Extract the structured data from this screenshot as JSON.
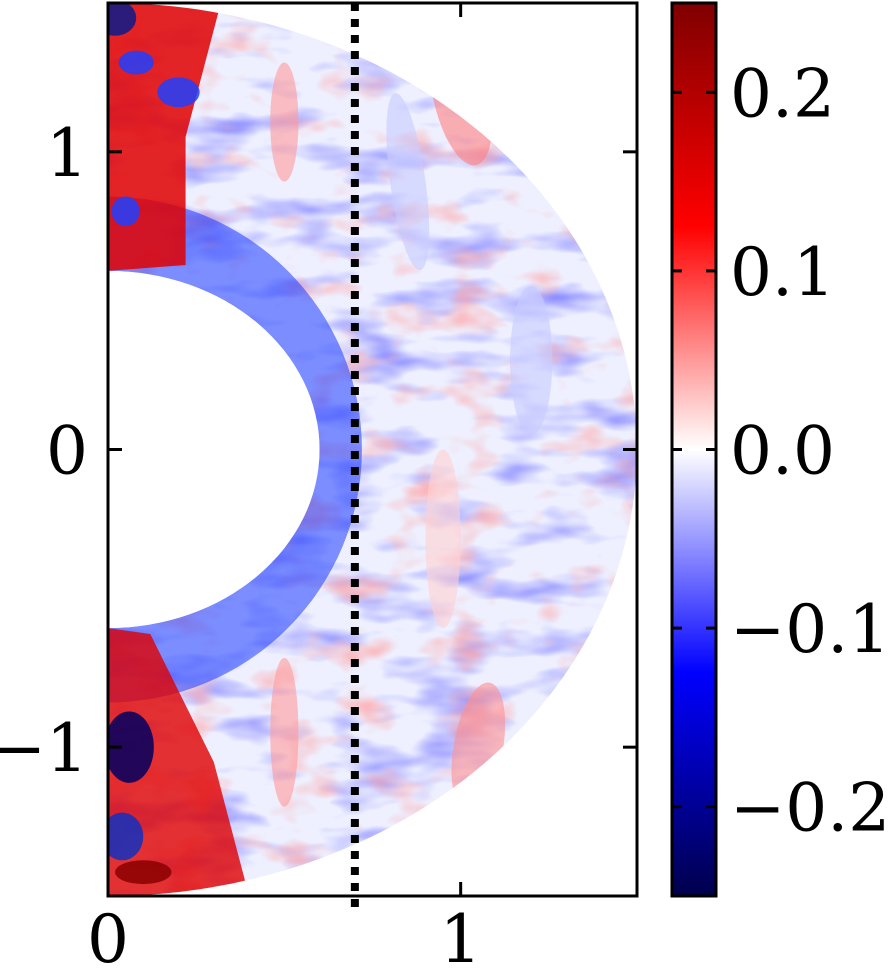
{
  "chart_data": {
    "type": "heatmap",
    "title": "",
    "xlabel": "",
    "ylabel": "",
    "geometry": "meridional half-annulus",
    "inner_radius": 0.6,
    "outer_radius": 1.5,
    "xlim": [
      0,
      1.5
    ],
    "ylim": [
      -1.5,
      1.5
    ],
    "x_ticks": [
      0,
      1
    ],
    "x_tick_labels": [
      "0",
      "1"
    ],
    "y_ticks": [
      -1,
      0,
      1
    ],
    "y_tick_labels": [
      "−1",
      "0",
      "1"
    ],
    "reference_line": {
      "x": 0.7,
      "style": "dotted",
      "color": "#000000"
    },
    "colorbar": {
      "colormap": "seismic",
      "range": [
        -0.25,
        0.25
      ],
      "ticks": [
        -0.2,
        -0.1,
        0.0,
        0.1,
        0.2
      ],
      "tick_labels": [
        "−0.2",
        "−0.1",
        "0.0",
        "0.1",
        "0.2"
      ],
      "colors": [
        "#00004c",
        "#0000ff",
        "#ffffff",
        "#ff0000",
        "#7f0000"
      ]
    },
    "grid": false
  }
}
